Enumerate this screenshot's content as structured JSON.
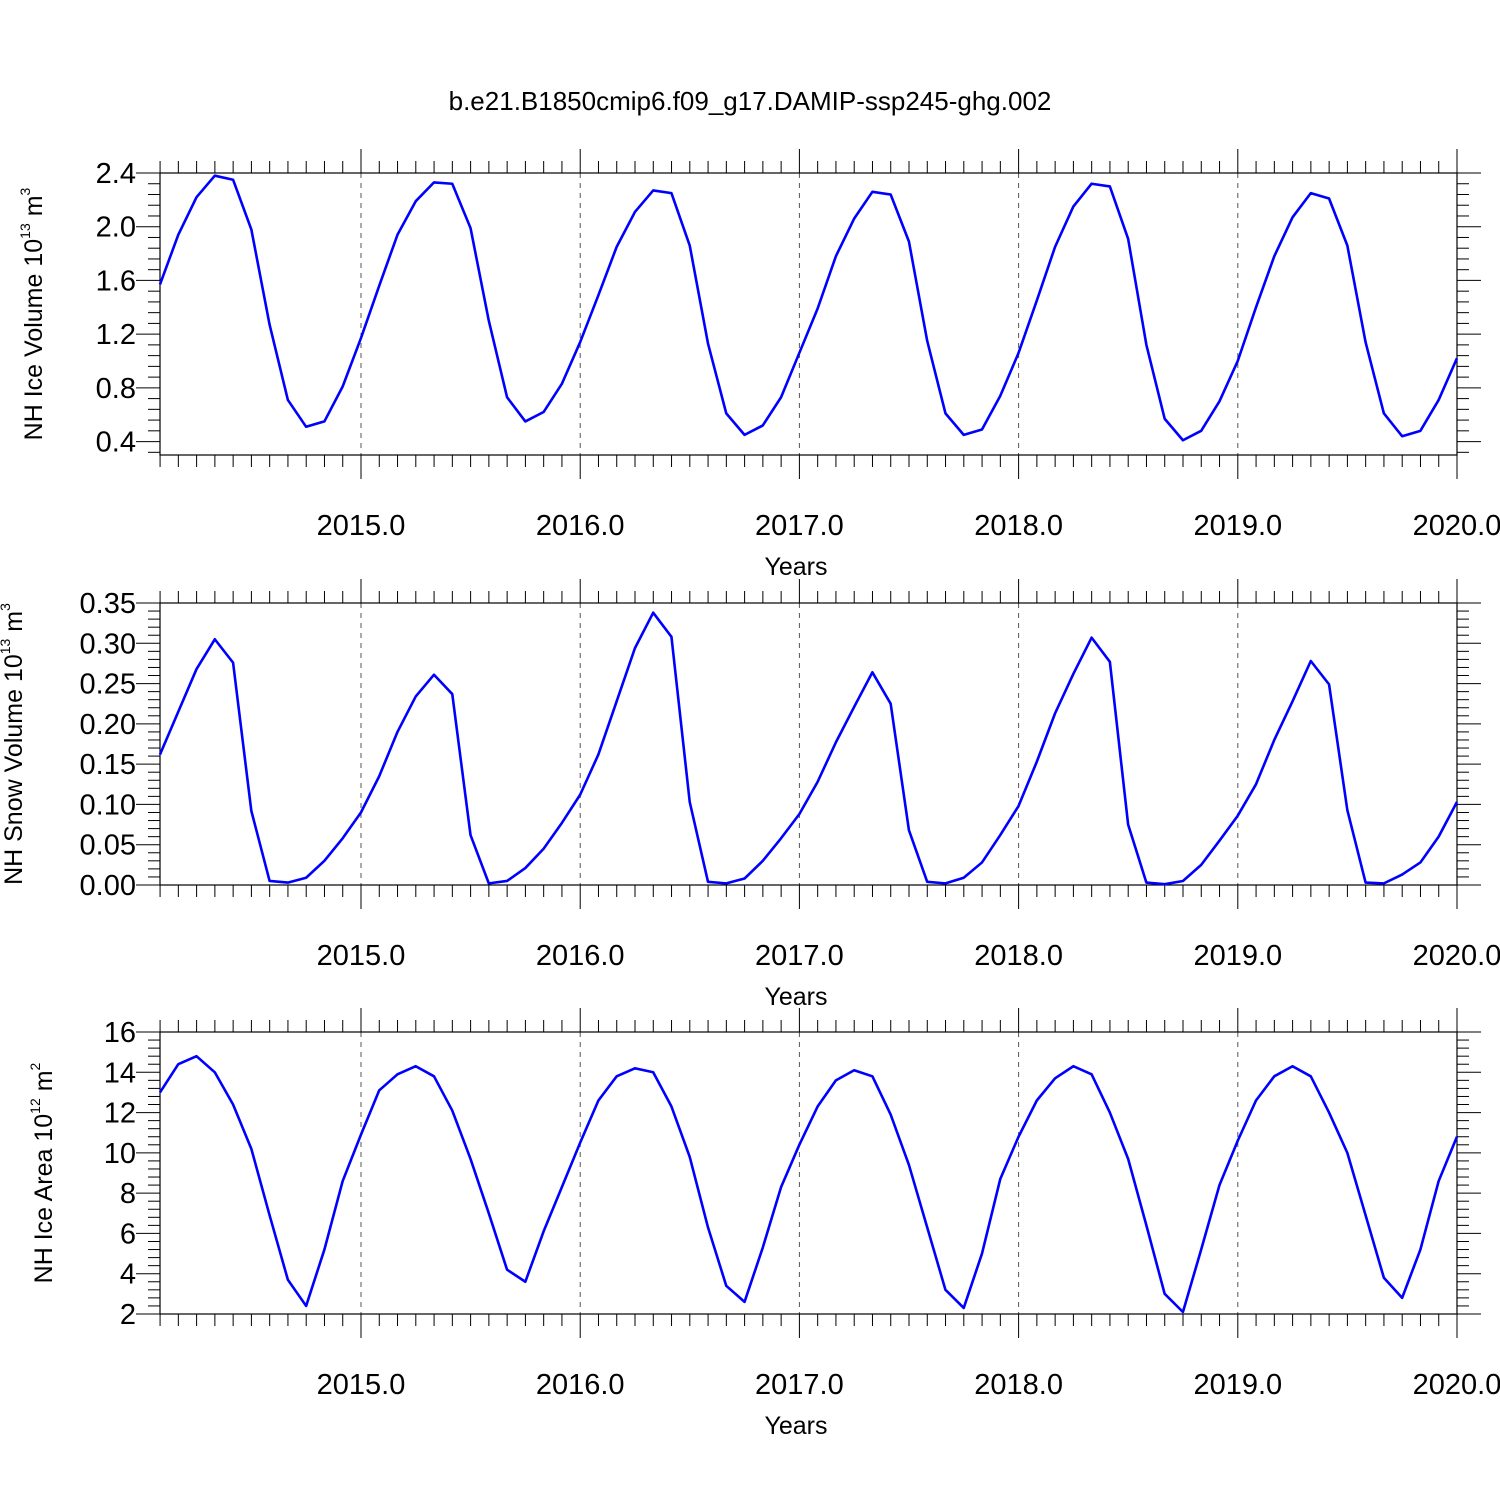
{
  "figure": {
    "title": "b.e21.B1850cmip6.f09_g17.DAMIP-ssp245-ghg.002",
    "line_color": "#0000ff",
    "grid_color": "#555555"
  },
  "chart_data": [
    {
      "type": "line",
      "xlabel": "Years",
      "ylabel": {
        "prefix": "NH Ice Volume 10",
        "exp": "13",
        "unit": " m",
        "unit_exp": "3"
      },
      "xlim": [
        2014.083,
        2020.0
      ],
      "ylim": [
        0.3,
        2.4
      ],
      "xticks": [
        2015.0,
        2016.0,
        2017.0,
        2018.0,
        2019.0,
        2020.0
      ],
      "xtick_labels": [
        "2015.0",
        "2016.0",
        "2017.0",
        "2018.0",
        "2019.0",
        "2020.0"
      ],
      "yticks": [
        0.4,
        0.8,
        1.2,
        1.6,
        2.0,
        2.4
      ],
      "ytick_labels": [
        "0.4",
        "0.8",
        "1.2",
        "1.6",
        "2.0",
        "2.4"
      ],
      "x_start": 2014.083,
      "x_step": 0.0833333,
      "grid": "vertical dashed at major ticks",
      "values": [
        1.57,
        1.94,
        2.22,
        2.38,
        2.35,
        1.98,
        1.27,
        0.71,
        0.51,
        0.55,
        0.81,
        1.17,
        1.56,
        1.94,
        2.19,
        2.33,
        2.32,
        1.99,
        1.3,
        0.73,
        0.55,
        0.62,
        0.83,
        1.14,
        1.49,
        1.85,
        2.11,
        2.27,
        2.25,
        1.86,
        1.13,
        0.61,
        0.45,
        0.52,
        0.73,
        1.06,
        1.39,
        1.78,
        2.06,
        2.26,
        2.24,
        1.89,
        1.15,
        0.61,
        0.45,
        0.49,
        0.74,
        1.06,
        1.45,
        1.85,
        2.15,
        2.32,
        2.3,
        1.91,
        1.12,
        0.57,
        0.41,
        0.48,
        0.7,
        1.0,
        1.4,
        1.78,
        2.07,
        2.25,
        2.21,
        1.86,
        1.14,
        0.61,
        0.44,
        0.48,
        0.71,
        1.02
      ]
    },
    {
      "type": "line",
      "xlabel": "Years",
      "ylabel": {
        "prefix": "NH Snow Volume 10",
        "exp": "13",
        "unit": " m",
        "unit_exp": "3"
      },
      "xlim": [
        2014.083,
        2020.0
      ],
      "ylim": [
        0.0,
        0.35
      ],
      "xticks": [
        2015.0,
        2016.0,
        2017.0,
        2018.0,
        2019.0,
        2020.0
      ],
      "xtick_labels": [
        "2015.0",
        "2016.0",
        "2017.0",
        "2018.0",
        "2019.0",
        "2020.0"
      ],
      "yticks": [
        0.0,
        0.05,
        0.1,
        0.15,
        0.2,
        0.25,
        0.3,
        0.35
      ],
      "ytick_labels": [
        "0.00",
        "0.05",
        "0.10",
        "0.15",
        "0.20",
        "0.25",
        "0.30",
        "0.35"
      ],
      "x_start": 2014.083,
      "x_step": 0.0833333,
      "grid": "vertical dashed at major ticks",
      "values": [
        0.162,
        0.215,
        0.268,
        0.305,
        0.276,
        0.092,
        0.005,
        0.003,
        0.009,
        0.03,
        0.058,
        0.09,
        0.135,
        0.19,
        0.234,
        0.261,
        0.237,
        0.062,
        0.002,
        0.005,
        0.021,
        0.045,
        0.077,
        0.112,
        0.162,
        0.228,
        0.294,
        0.338,
        0.308,
        0.103,
        0.004,
        0.002,
        0.008,
        0.03,
        0.058,
        0.088,
        0.128,
        0.177,
        0.221,
        0.264,
        0.225,
        0.068,
        0.004,
        0.002,
        0.009,
        0.028,
        0.062,
        0.098,
        0.153,
        0.213,
        0.262,
        0.307,
        0.277,
        0.075,
        0.003,
        0.001,
        0.005,
        0.025,
        0.055,
        0.086,
        0.125,
        0.18,
        0.228,
        0.278,
        0.249,
        0.093,
        0.003,
        0.002,
        0.013,
        0.028,
        0.06,
        0.103
      ]
    },
    {
      "type": "line",
      "xlabel": "Years",
      "ylabel": {
        "prefix": "NH Ice Area 10",
        "exp": "12",
        "unit": " m",
        "unit_exp": "2"
      },
      "xlim": [
        2014.083,
        2020.0
      ],
      "ylim": [
        2.0,
        16.0
      ],
      "xticks": [
        2015.0,
        2016.0,
        2017.0,
        2018.0,
        2019.0,
        2020.0
      ],
      "xtick_labels": [
        "2015.0",
        "2016.0",
        "2017.0",
        "2018.0",
        "2019.0",
        "2020.0"
      ],
      "yticks": [
        2,
        4,
        6,
        8,
        10,
        12,
        14,
        16
      ],
      "ytick_labels": [
        "2",
        "4",
        "6",
        "8",
        "10",
        "12",
        "14",
        "16"
      ],
      "x_start": 2014.083,
      "x_step": 0.0833333,
      "grid": "vertical dashed at major ticks",
      "values": [
        13.0,
        14.4,
        14.8,
        14.0,
        12.4,
        10.2,
        6.9,
        3.7,
        2.4,
        5.2,
        8.6,
        10.9,
        13.1,
        13.9,
        14.3,
        13.8,
        12.1,
        9.7,
        7.0,
        4.2,
        3.6,
        6.1,
        8.3,
        10.5,
        12.6,
        13.8,
        14.2,
        14.0,
        12.3,
        9.8,
        6.3,
        3.4,
        2.6,
        5.3,
        8.3,
        10.4,
        12.3,
        13.6,
        14.1,
        13.8,
        11.9,
        9.4,
        6.3,
        3.2,
        2.3,
        5.0,
        8.7,
        10.8,
        12.6,
        13.7,
        14.3,
        13.9,
        12.0,
        9.7,
        6.4,
        3.0,
        2.1,
        5.2,
        8.4,
        10.6,
        12.6,
        13.8,
        14.3,
        13.8,
        12.0,
        10.0,
        6.9,
        3.8,
        2.8,
        5.2,
        8.6,
        10.8
      ]
    }
  ]
}
